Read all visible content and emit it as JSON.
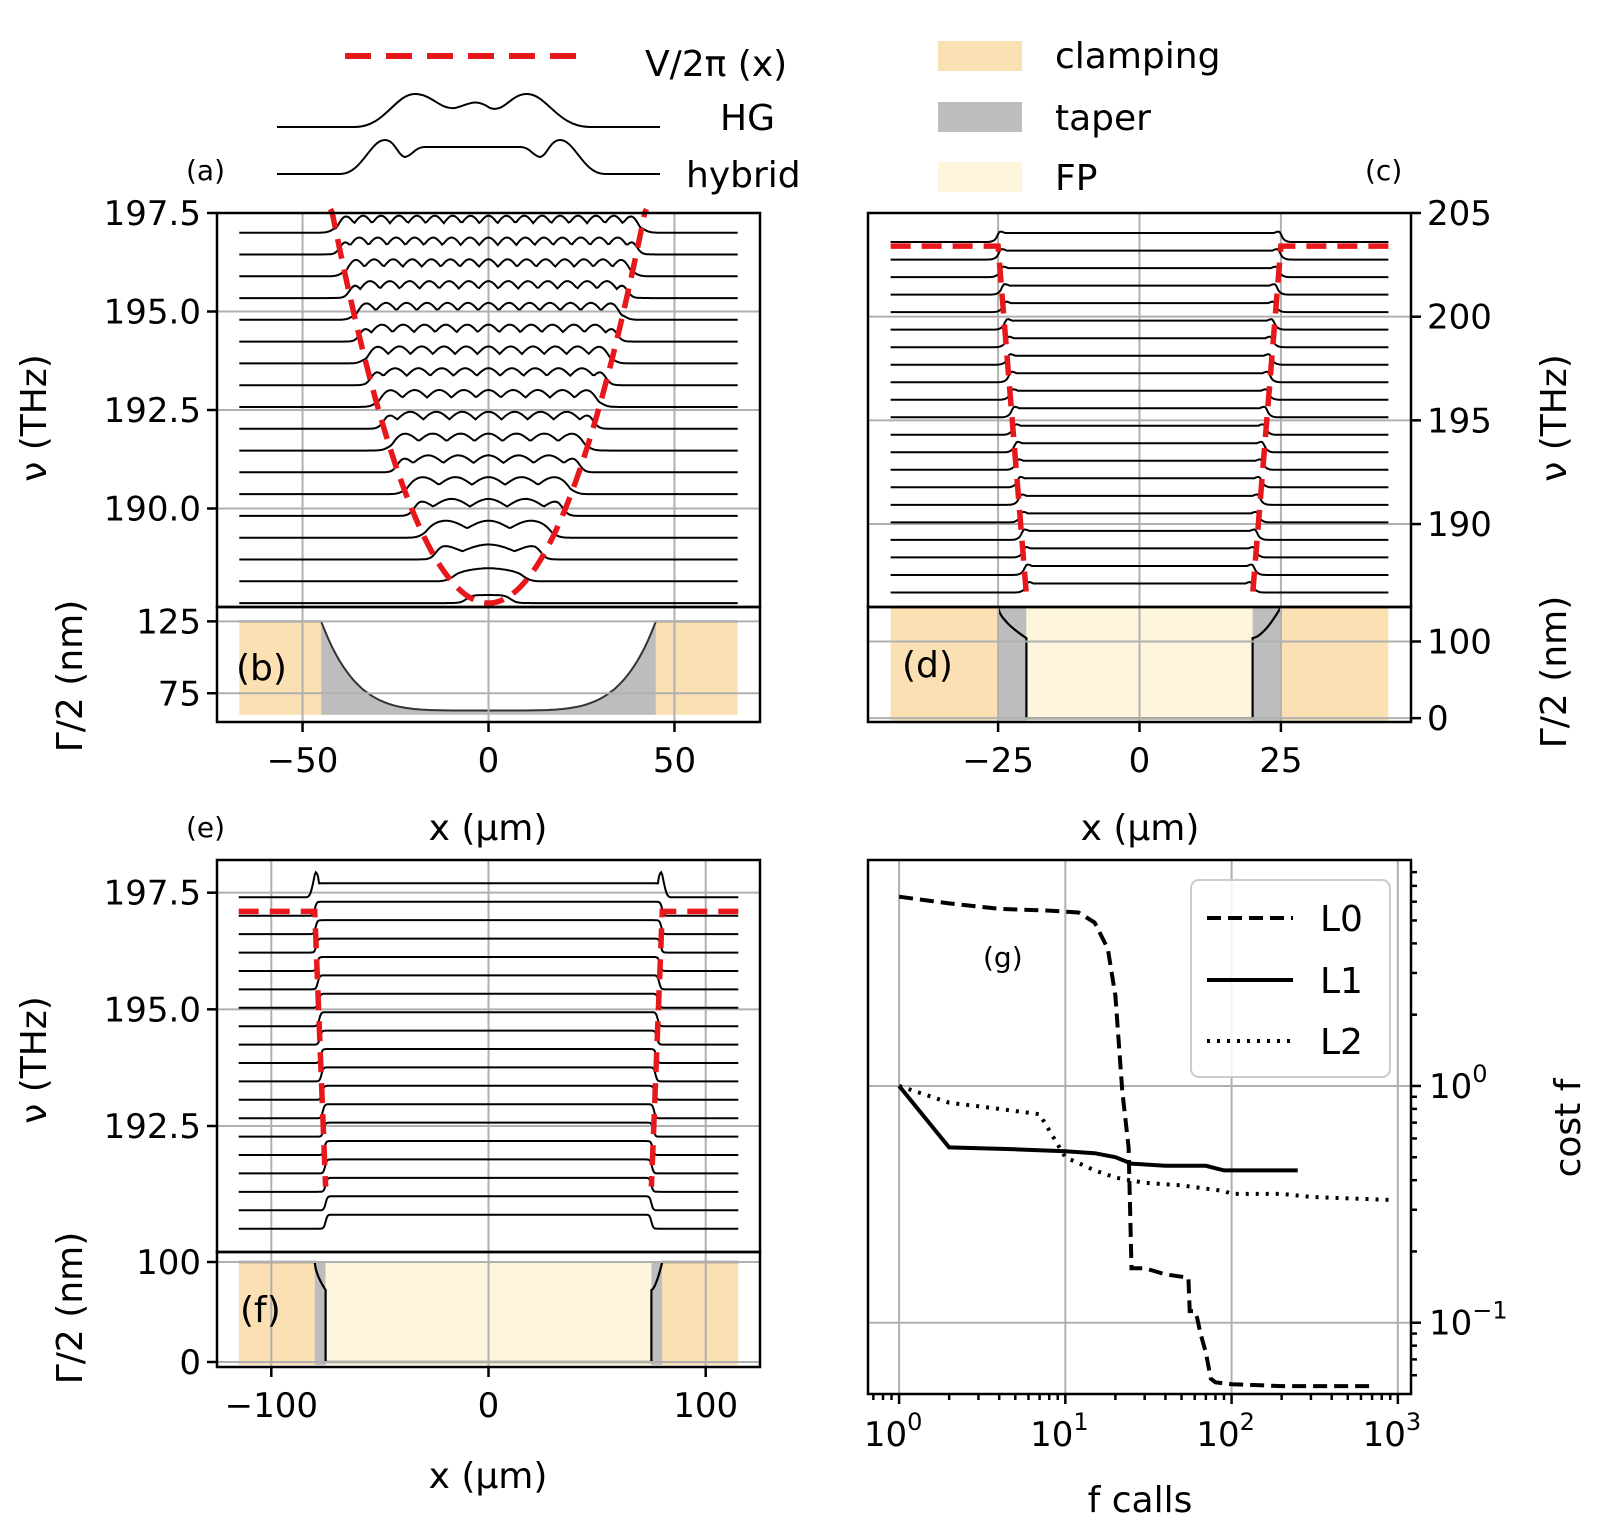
{
  "legend": {
    "potential": "V/2π (x)",
    "hg": "HG",
    "hybrid": "hybrid",
    "clamping": "clamping",
    "taper": "taper",
    "fp": "FP",
    "colors": {
      "clamping": "#fbe0b4",
      "taper": "#bdbdbd",
      "fp": "#fdf6dc",
      "potential": "#e8171b"
    }
  },
  "panel_labels": {
    "a": "(a)",
    "b": "(b)",
    "c": "(c)",
    "d": "(d)",
    "e": "(e)",
    "f": "(f)",
    "g": "(g)"
  },
  "axes": {
    "nu_label": "ν  (THz)",
    "gamma_label": "Γ/2 (nm)",
    "x_label": "x (μm)",
    "fcalls_label": "f calls",
    "cost_label": "cost f"
  },
  "chart_data": [
    {
      "id": "a",
      "type": "line",
      "title": "(a)",
      "ylabel": "ν  (THz)",
      "ylim": [
        187.5,
        197.5
      ],
      "yticks": [
        "190.0",
        "192.5",
        "195.0",
        "197.5"
      ],
      "xlim": [
        -73,
        73
      ],
      "potential": "parabolic, minimum 187.6 THz at x = 0, reaching 197.5 THz at x ≈ ±42 μm",
      "series": [
        {
          "name": "mode profiles",
          "count": 18,
          "offsets_thz": [
            187.6,
            197.0
          ]
        }
      ]
    },
    {
      "id": "b",
      "type": "area",
      "title": "(b)",
      "ylabel": "Γ/2 (nm)",
      "ylim": [
        55,
        135
      ],
      "yticks": [
        "75",
        "125"
      ],
      "xlim": [
        -73,
        73
      ],
      "xticks": [
        "−50",
        "0",
        "50"
      ],
      "xlabel": "x (μm)",
      "regions": [
        {
          "name": "clamping",
          "x": [
            -67,
            -45
          ]
        },
        {
          "name": "taper",
          "x": [
            -45,
            45
          ]
        },
        {
          "name": "clamping",
          "x": [
            45,
            67
          ]
        }
      ],
      "profile": {
        "edge": 125,
        "center": 63
      }
    },
    {
      "id": "c",
      "type": "line",
      "title": "(c)",
      "ylabel": "ν  (THz)",
      "ylim": [
        186,
        205
      ],
      "yticks": [
        "190",
        "195",
        "200",
        "205"
      ],
      "xlim": [
        -48,
        48
      ],
      "potential": "flat 203.4 THz for |x| > 25 μm, steep walls from x = ±25 to ±20 μm",
      "series": [
        {
          "name": "mode profiles",
          "count": 21,
          "offsets_thz": [
            186.7,
            203.6
          ]
        }
      ]
    },
    {
      "id": "d",
      "type": "area",
      "title": "(d)",
      "ylabel": "Γ/2 (nm)",
      "ylim": [
        -5,
        145
      ],
      "yticks": [
        "0",
        "100"
      ],
      "xlim": [
        -48,
        48
      ],
      "xticks": [
        "−25",
        "0",
        "25"
      ],
      "xlabel": "x (μm)",
      "regions": [
        {
          "name": "clamping",
          "x": [
            -44,
            -25
          ]
        },
        {
          "name": "taper",
          "x": [
            -25,
            -20
          ]
        },
        {
          "name": "FP",
          "x": [
            -20,
            20
          ]
        },
        {
          "name": "taper",
          "x": [
            20,
            25
          ]
        },
        {
          "name": "clamping",
          "x": [
            25,
            44
          ]
        }
      ],
      "profile": {
        "edge": 145,
        "center": 0
      }
    },
    {
      "id": "e",
      "type": "line",
      "title": "(e)",
      "ylabel": "ν  (THz)",
      "ylim": [
        189.8,
        198.2
      ],
      "yticks": [
        "192.5",
        "195.0",
        "197.5"
      ],
      "xlim": [
        -125,
        125
      ],
      "potential": "flat 197.1 THz for |x| > 80 μm, walls from x = ±80 to ±75 μm",
      "series": [
        {
          "name": "mode profiles",
          "count": 19,
          "offsets_thz": [
            190.3,
            197.4
          ]
        }
      ]
    },
    {
      "id": "f",
      "type": "area",
      "title": "(f)",
      "ylabel": "Γ/2 (nm)",
      "ylim": [
        -5,
        110
      ],
      "yticks": [
        "0",
        "100"
      ],
      "xlim": [
        -125,
        125
      ],
      "xticks": [
        "−100",
        "0",
        "100"
      ],
      "xlabel": "x (μm)",
      "regions": [
        {
          "name": "clamping",
          "x": [
            -115,
            -80
          ]
        },
        {
          "name": "taper",
          "x": [
            -80,
            -75
          ]
        },
        {
          "name": "FP",
          "x": [
            -75,
            75
          ]
        },
        {
          "name": "taper",
          "x": [
            75,
            80
          ]
        },
        {
          "name": "clamping",
          "x": [
            80,
            115
          ]
        }
      ],
      "profile": {
        "edge": 100,
        "center": 0
      }
    },
    {
      "id": "g",
      "type": "line",
      "title": "(g)",
      "xscale": "log",
      "yscale": "log",
      "xlabel": "f calls",
      "ylabel": "cost f",
      "xlim": [
        0.65,
        1200
      ],
      "ylim": [
        0.05,
        9
      ],
      "xticks": [
        "10^0",
        "10^1",
        "10^2",
        "10^3"
      ],
      "yticks": [
        "10^-1",
        "10^0"
      ],
      "legend_position": "top-right",
      "series": [
        {
          "name": "L0",
          "style": "dashed",
          "x": [
            1,
            2,
            4,
            8,
            12,
            15,
            18,
            20,
            22,
            24,
            25,
            30,
            40,
            55,
            56,
            60,
            62,
            65,
            70,
            75,
            80,
            100,
            200,
            400,
            700
          ],
          "y": [
            6.3,
            5.9,
            5.6,
            5.5,
            5.4,
            4.9,
            3.8,
            2.4,
            0.95,
            0.55,
            0.17,
            0.17,
            0.16,
            0.155,
            0.112,
            0.112,
            0.105,
            0.09,
            0.075,
            0.058,
            0.056,
            0.055,
            0.054,
            0.054,
            0.054
          ]
        },
        {
          "name": "L1",
          "style": "solid",
          "x": [
            1,
            2,
            5,
            10,
            15,
            20,
            25,
            40,
            70,
            90,
            120,
            250
          ],
          "y": [
            1.0,
            0.55,
            0.54,
            0.53,
            0.52,
            0.5,
            0.47,
            0.46,
            0.46,
            0.44,
            0.44,
            0.44
          ]
        },
        {
          "name": "L2",
          "style": "dotted",
          "x": [
            1,
            2,
            4,
            7,
            10,
            15,
            20,
            30,
            50,
            90,
            100,
            200,
            300,
            500,
            900
          ],
          "y": [
            1.0,
            0.85,
            0.8,
            0.76,
            0.5,
            0.44,
            0.41,
            0.39,
            0.38,
            0.36,
            0.35,
            0.35,
            0.34,
            0.335,
            0.33
          ]
        }
      ]
    }
  ]
}
